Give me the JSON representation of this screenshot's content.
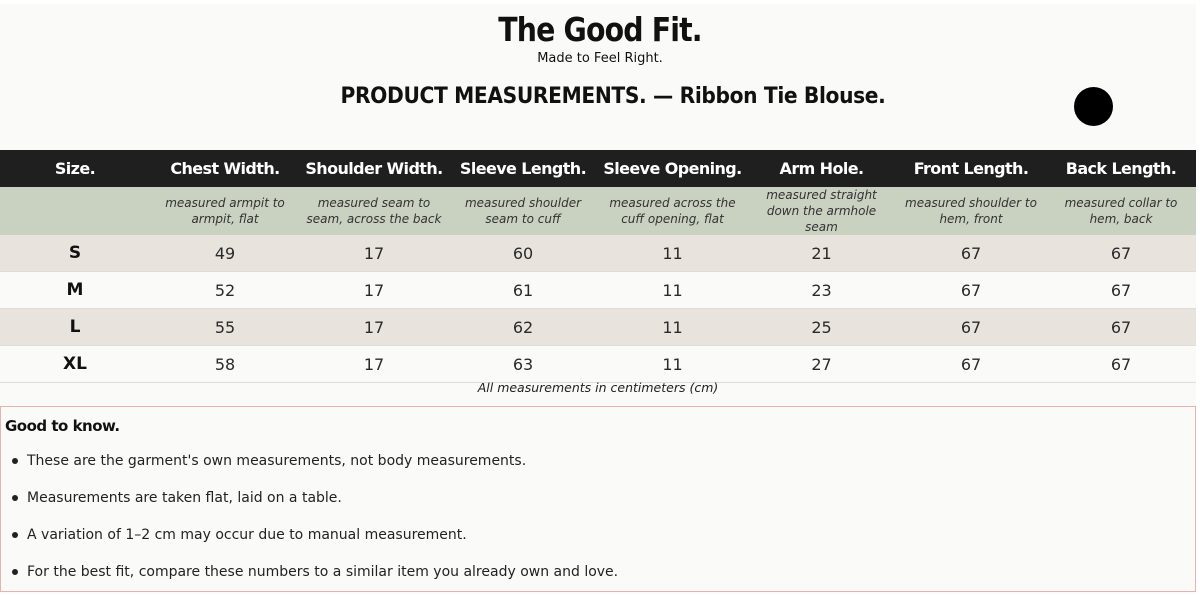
{
  "header": {
    "brand": "The Good Fit.",
    "tagline": "Made to Feel Right.",
    "product_title": "PRODUCT MEASUREMENTS. — Ribbon Tie Blouse."
  },
  "table": {
    "columns": [
      {
        "label": "Size.",
        "description": ""
      },
      {
        "label": "Chest Width.",
        "description": "measured armpit to armpit, flat"
      },
      {
        "label": "Shoulder Width.",
        "description": "measured seam to seam, across the back"
      },
      {
        "label": "Sleeve Length.",
        "description": "measured shoulder seam to cuff"
      },
      {
        "label": "Sleeve Opening.",
        "description": "measured across the cuff opening, flat"
      },
      {
        "label": "Arm Hole.",
        "description": "measured straight down the armhole seam"
      },
      {
        "label": "Front Length.",
        "description": "measured shoulder to hem, front"
      },
      {
        "label": "Back Length.",
        "description": "measured collar to hem, back"
      }
    ],
    "rows": [
      [
        "S",
        "49",
        "17",
        "60",
        "11",
        "21",
        "67",
        "67"
      ],
      [
        "M",
        "52",
        "17",
        "61",
        "11",
        "23",
        "67",
        "67"
      ],
      [
        "L",
        "55",
        "17",
        "62",
        "11",
        "25",
        "67",
        "67"
      ],
      [
        "XL",
        "58",
        "17",
        "63",
        "11",
        "27",
        "67",
        "67"
      ]
    ],
    "units_note": "All measurements in centimeters (cm)"
  },
  "good_to_know": {
    "title": "Good to know.",
    "items": [
      "These are the garment's own measurements, not body measurements.",
      "Measurements are taken flat, laid on a table.",
      "A variation of 1–2 cm may occur due to manual measurement.",
      "For the best fit, compare these numbers to a similar item you already own and love."
    ]
  },
  "colors": {
    "header_bar": "#1f1f1f",
    "description_bar": "#c9d1c1",
    "row_shade": "#e8e3dd",
    "box_border": "#e6b3ae"
  }
}
